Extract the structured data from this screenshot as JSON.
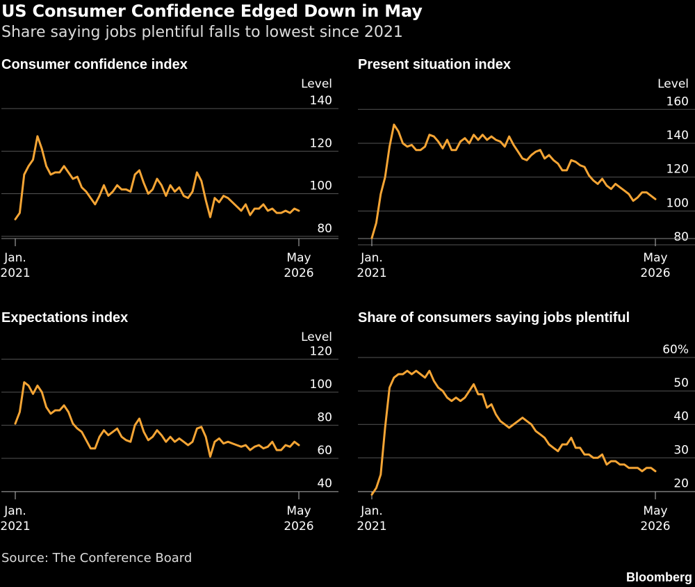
{
  "header": {
    "title": "US Consumer Confidence Edged Down in May",
    "subtitle": "Share saying jobs plentiful falls to lowest since 2021"
  },
  "footer": {
    "source": "Source: The Conference Board",
    "brand": "Bloomberg"
  },
  "colors": {
    "line": "#f5a535",
    "grid": "#555555",
    "text": "#ffffff",
    "background": "#000000"
  },
  "chart_data": [
    {
      "type": "line",
      "title": "Consumer confidence index",
      "unit_label": "Level",
      "yticks": [
        "80",
        "100",
        "120",
        "140"
      ],
      "ylim": [
        76,
        142
      ],
      "xticks": [
        {
          "line1": "Jan.",
          "line2": "2021",
          "index": 0
        },
        {
          "line1": "May",
          "line2": "2026",
          "index": 64
        }
      ],
      "values": [
        88,
        91,
        109,
        113,
        116,
        127,
        121,
        113,
        109,
        110,
        110,
        113,
        110,
        107,
        108,
        103,
        101,
        98,
        95,
        99,
        104,
        99,
        101,
        104,
        102,
        102,
        101,
        109,
        111,
        105,
        100,
        102,
        107,
        104,
        99,
        104,
        101,
        103,
        99,
        98,
        101,
        110,
        106,
        97,
        89,
        98,
        96,
        99,
        98,
        96,
        94,
        92,
        95,
        90,
        93,
        93,
        95,
        92,
        93,
        91,
        91,
        92,
        91,
        93,
        92
      ]
    },
    {
      "type": "line",
      "title": "Present situation index",
      "unit_label": "Level",
      "yticks": [
        "80",
        "100",
        "120",
        "140",
        "160"
      ],
      "ylim": [
        80,
        163
      ],
      "xticks": [
        {
          "line1": "Jan.",
          "line2": "2021",
          "index": 0
        },
        {
          "line1": "May",
          "line2": "2026",
          "index": 64
        }
      ],
      "values": [
        84,
        93,
        110,
        120,
        138,
        151,
        147,
        140,
        138,
        139,
        136,
        136,
        138,
        145,
        144,
        141,
        137,
        142,
        136,
        136,
        141,
        143,
        140,
        145,
        142,
        145,
        142,
        144,
        142,
        141,
        138,
        144,
        139,
        135,
        131,
        130,
        133,
        135,
        136,
        131,
        133,
        130,
        128,
        124,
        124,
        130,
        129,
        127,
        126,
        121,
        118,
        116,
        119,
        115,
        113,
        116,
        114,
        112,
        110,
        106,
        108,
        111,
        111,
        109,
        107
      ]
    },
    {
      "type": "line",
      "title": "Expectations index",
      "unit_label": "Level",
      "yticks": [
        "40",
        "60",
        "80",
        "100",
        "120"
      ],
      "ylim": [
        36,
        121
      ],
      "xticks": [
        {
          "line1": "Jan.",
          "line2": "2021",
          "index": 0
        },
        {
          "line1": "May",
          "line2": "2026",
          "index": 64
        }
      ],
      "values": [
        81,
        88,
        106,
        104,
        99,
        104,
        100,
        91,
        87,
        89,
        89,
        92,
        88,
        81,
        78,
        76,
        71,
        66,
        66,
        73,
        77,
        74,
        76,
        78,
        73,
        71,
        70,
        80,
        84,
        76,
        71,
        73,
        77,
        74,
        70,
        73,
        70,
        72,
        70,
        68,
        70,
        78,
        79,
        73,
        61,
        70,
        72,
        69,
        70,
        69,
        68,
        67,
        68,
        65,
        67,
        68,
        66,
        67,
        70,
        65,
        65,
        68,
        67,
        70,
        68
      ]
    },
    {
      "type": "line",
      "title": "Share of consumers saying jobs plentiful",
      "unit_label": "",
      "yticks": [
        "20",
        "30",
        "40",
        "50",
        "60%"
      ],
      "ylim": [
        18,
        60
      ],
      "xticks": [
        {
          "line1": "Jan.",
          "line2": "2021",
          "index": 0
        },
        {
          "line1": "May",
          "line2": "2026",
          "index": 64
        }
      ],
      "values": [
        19,
        21,
        25,
        39,
        51,
        54,
        55,
        55,
        56,
        55,
        56,
        55,
        54,
        56,
        53,
        51,
        50,
        48,
        47,
        48,
        47,
        48,
        50,
        52,
        49,
        49,
        45,
        46,
        43,
        41,
        40,
        39,
        40,
        41,
        42,
        41,
        40,
        38,
        37,
        36,
        34,
        33,
        32,
        34,
        34,
        36,
        33,
        33,
        31,
        31,
        30,
        30,
        31,
        28,
        29,
        29,
        28,
        28,
        27,
        27,
        27,
        26,
        27,
        27,
        26
      ]
    }
  ]
}
